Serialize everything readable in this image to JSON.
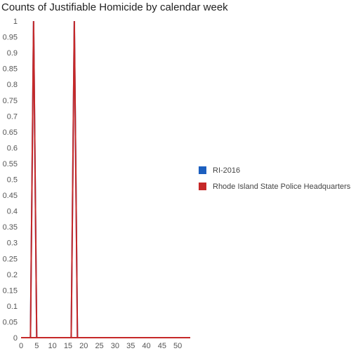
{
  "chart_data": {
    "type": "line",
    "title": "Counts of Justifiable Homicide by calendar week",
    "xlabel": "",
    "ylabel": "",
    "xlim": [
      0,
      54
    ],
    "ylim": [
      0,
      1
    ],
    "x_ticks": [
      0,
      5,
      10,
      15,
      20,
      25,
      30,
      35,
      40,
      45,
      50
    ],
    "y_ticks": [
      "0",
      "0.05",
      "0.1",
      "0.15",
      "0.2",
      "0.25",
      "0.3",
      "0.35",
      "0.4",
      "0.45",
      "0.5",
      "0.55",
      "0.6",
      "0.65",
      "0.7",
      "0.75",
      "0.8",
      "0.85",
      "0.9",
      "0.95",
      "1"
    ],
    "grid": false,
    "legend_position": "right",
    "series": [
      {
        "name": "RI-2016",
        "color": "#1c5fbf",
        "x": [
          0,
          1,
          2,
          3,
          4,
          5,
          6,
          7,
          8,
          9,
          10,
          11,
          12,
          13,
          14,
          15,
          16,
          17,
          18,
          19,
          20,
          21,
          22,
          23,
          24,
          25,
          26,
          27,
          28,
          29,
          30,
          31,
          32,
          33,
          34,
          35,
          36,
          37,
          38,
          39,
          40,
          41,
          42,
          43,
          44,
          45,
          46,
          47,
          48,
          49,
          50,
          51,
          52,
          53,
          54
        ],
        "values": [
          0,
          0,
          0,
          0,
          1,
          0,
          0,
          0,
          0,
          0,
          0,
          0,
          0,
          0,
          0,
          0,
          0,
          1,
          0,
          0,
          0,
          0,
          0,
          0,
          0,
          0,
          0,
          0,
          0,
          0,
          0,
          0,
          0,
          0,
          0,
          0,
          0,
          0,
          0,
          0,
          0,
          0,
          0,
          0,
          0,
          0,
          0,
          0,
          0,
          0,
          0,
          0,
          0,
          0,
          0
        ]
      },
      {
        "name": "Rhode Island State Police Headquarters",
        "color": "#c62828",
        "x": [
          0,
          1,
          2,
          3,
          4,
          5,
          6,
          7,
          8,
          9,
          10,
          11,
          12,
          13,
          14,
          15,
          16,
          17,
          18,
          19,
          20,
          21,
          22,
          23,
          24,
          25,
          26,
          27,
          28,
          29,
          30,
          31,
          32,
          33,
          34,
          35,
          36,
          37,
          38,
          39,
          40,
          41,
          42,
          43,
          44,
          45,
          46,
          47,
          48,
          49,
          50,
          51,
          52,
          53,
          54
        ],
        "values": [
          0,
          0,
          0,
          0,
          1,
          0,
          0,
          0,
          0,
          0,
          0,
          0,
          0,
          0,
          0,
          0,
          0,
          1,
          0,
          0,
          0,
          0,
          0,
          0,
          0,
          0,
          0,
          0,
          0,
          0,
          0,
          0,
          0,
          0,
          0,
          0,
          0,
          0,
          0,
          0,
          0,
          0,
          0,
          0,
          0,
          0,
          0,
          0,
          0,
          0,
          0,
          0,
          0,
          0,
          0
        ]
      }
    ]
  }
}
